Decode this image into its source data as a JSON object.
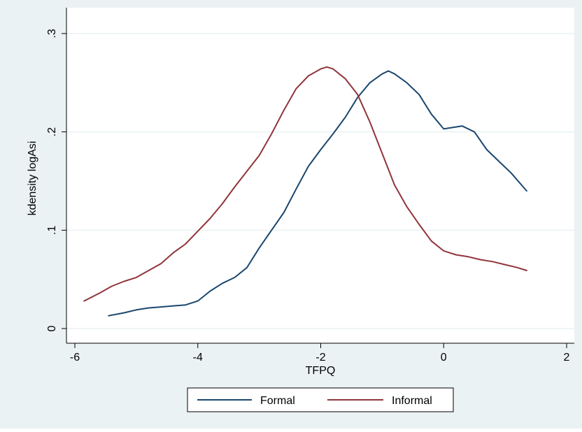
{
  "chart_data": {
    "type": "line",
    "title": "",
    "xlabel": "TFPQ",
    "ylabel": "kdensity logAsi",
    "xlim": [
      -6.2,
      2.2
    ],
    "ylim": [
      -0.012,
      0.32
    ],
    "xticks": [
      -6,
      -4,
      -2,
      0,
      2
    ],
    "xtick_labels": [
      "-6",
      "-4",
      "-2",
      "0",
      "2"
    ],
    "yticks": [
      0,
      0.1,
      0.2,
      0.3
    ],
    "ytick_labels": [
      "0",
      ".1",
      ".2",
      ".3"
    ],
    "grid": "horizontal",
    "legend": "bottom-center",
    "colors": {
      "outer_background": "#eaf2f3",
      "plot_background": "#ffffff",
      "gridline": "#eaf2f3",
      "axis": "#000000"
    },
    "series": [
      {
        "name": "Formal",
        "color": "#1a476f",
        "x": [
          -5.45,
          -5.2,
          -5.0,
          -4.8,
          -4.6,
          -4.4,
          -4.2,
          -4.0,
          -3.8,
          -3.6,
          -3.4,
          -3.2,
          -3.0,
          -2.8,
          -2.6,
          -2.4,
          -2.2,
          -2.0,
          -1.8,
          -1.6,
          -1.4,
          -1.2,
          -1.0,
          -0.9,
          -0.8,
          -0.6,
          -0.4,
          -0.2,
          0.0,
          0.1,
          0.3,
          0.5,
          0.7,
          0.9,
          1.1,
          1.35
        ],
        "y": [
          0.013,
          0.016,
          0.019,
          0.021,
          0.022,
          0.023,
          0.024,
          0.028,
          0.038,
          0.046,
          0.052,
          0.062,
          0.082,
          0.1,
          0.118,
          0.142,
          0.165,
          0.182,
          0.198,
          0.215,
          0.235,
          0.25,
          0.259,
          0.262,
          0.259,
          0.25,
          0.238,
          0.218,
          0.203,
          0.204,
          0.206,
          0.2,
          0.182,
          0.17,
          0.158,
          0.14
        ]
      },
      {
        "name": "Informal",
        "color": "#90353b",
        "x": [
          -5.85,
          -5.6,
          -5.4,
          -5.2,
          -5.0,
          -4.8,
          -4.6,
          -4.4,
          -4.2,
          -4.0,
          -3.8,
          -3.6,
          -3.4,
          -3.2,
          -3.0,
          -2.8,
          -2.6,
          -2.4,
          -2.2,
          -2.0,
          -1.9,
          -1.8,
          -1.6,
          -1.4,
          -1.2,
          -1.0,
          -0.8,
          -0.6,
          -0.4,
          -0.2,
          0.0,
          0.2,
          0.4,
          0.6,
          0.8,
          1.0,
          1.2,
          1.35
        ],
        "y": [
          0.028,
          0.036,
          0.043,
          0.048,
          0.052,
          0.059,
          0.066,
          0.077,
          0.086,
          0.099,
          0.112,
          0.127,
          0.144,
          0.16,
          0.176,
          0.198,
          0.222,
          0.244,
          0.257,
          0.264,
          0.266,
          0.264,
          0.254,
          0.238,
          0.21,
          0.178,
          0.146,
          0.124,
          0.106,
          0.089,
          0.079,
          0.075,
          0.073,
          0.07,
          0.068,
          0.065,
          0.062,
          0.059
        ]
      }
    ]
  }
}
